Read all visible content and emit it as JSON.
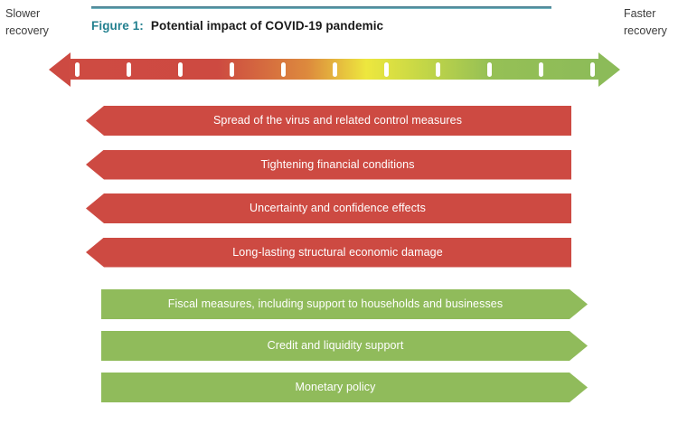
{
  "figure": {
    "label": "Figure 1:",
    "title": "Potential impact of COVID-19 pandemic"
  },
  "scale": {
    "left_label_line1": "Slower",
    "left_label_line2": "recovery",
    "right_label_line1": "Faster",
    "right_label_line2": "recovery",
    "tick_count": 11,
    "gradient_stops": [
      "#ce4b42",
      "#dd8a3d",
      "#ede73e",
      "#c3d647",
      "#8cbb59"
    ]
  },
  "bars": {
    "negative": [
      "Spread of the virus and related control measures",
      "Tightening financial conditions",
      "Uncertainty and confidence effects",
      "Long-lasting structural economic damage"
    ],
    "positive": [
      "Fiscal measures, including support to households and businesses",
      "Credit and liquidity support",
      "Monetary policy"
    ]
  },
  "colors": {
    "negative_bar": "#cd4a42",
    "positive_bar": "#90bb5b",
    "figure_label": "#23808f",
    "title_text": "#1a1a1a",
    "rule_teal": "#74b6c1",
    "tick": "#ffffff",
    "side_label_text": "#3c3c3c"
  }
}
